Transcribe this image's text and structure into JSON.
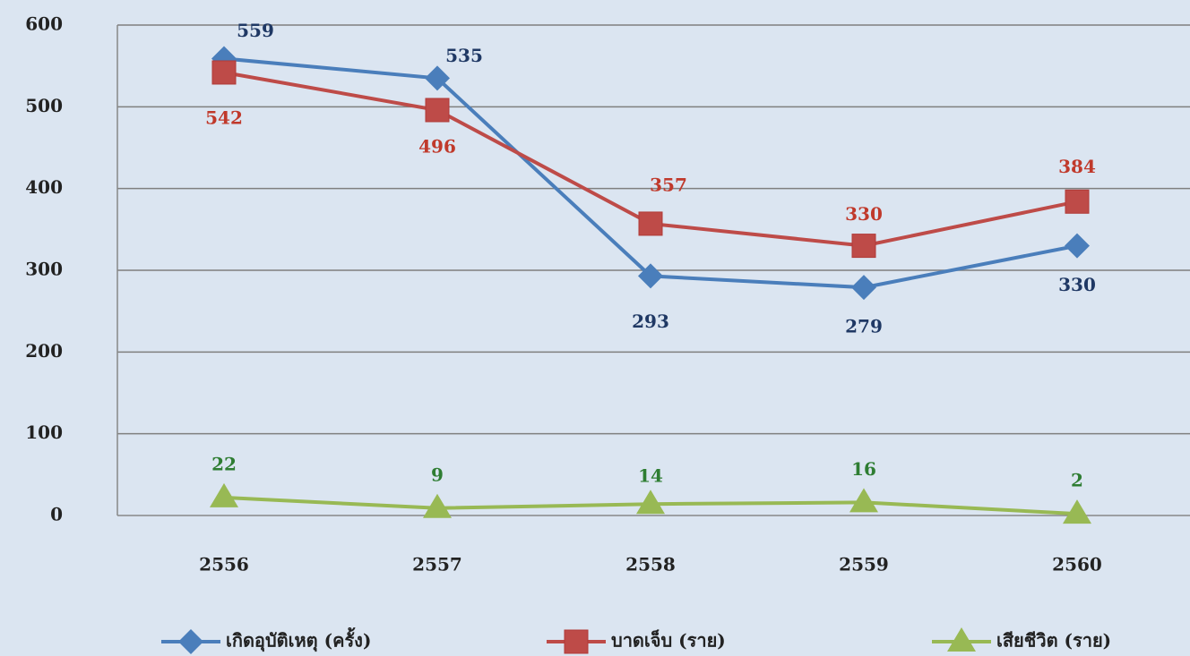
{
  "chart_data": {
    "type": "line",
    "categories": [
      "2556",
      "2557",
      "2558",
      "2559",
      "2560"
    ],
    "series": [
      {
        "name": "เกิดอุบัติเหตุ (ครั้ง)",
        "color": "#4a7ebb",
        "values": [
          559,
          535,
          293,
          279,
          330
        ]
      },
      {
        "name": "บาดเจ็บ (ราย)",
        "color": "#be4b48",
        "values": [
          542,
          496,
          357,
          330,
          384
        ]
      },
      {
        "name": "เสียชีวิต (ราย)",
        "color": "#98b954",
        "values": [
          22,
          9,
          14,
          16,
          2
        ]
      }
    ],
    "ylim": [
      0,
      600
    ],
    "yticks": [
      0,
      100,
      200,
      300,
      400,
      500,
      600
    ],
    "grid": true,
    "legend": "bottom"
  }
}
